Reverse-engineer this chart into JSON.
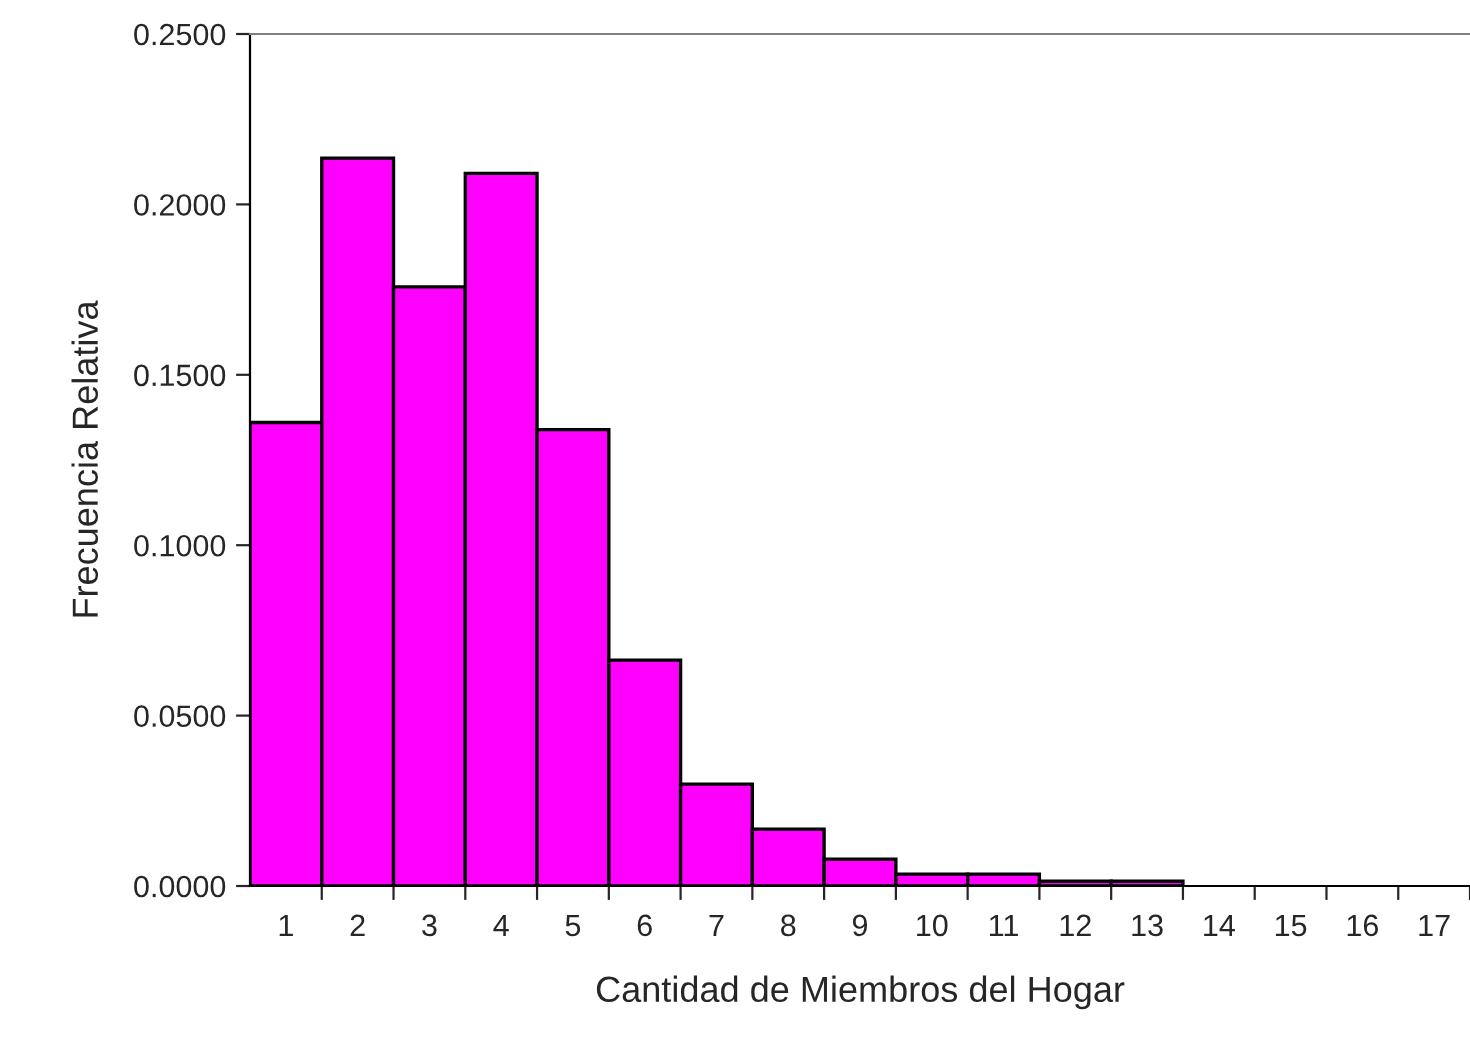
{
  "chart_data": {
    "type": "bar",
    "xlabel": "Cantidad de Miembros del Hogar",
    "ylabel": "Frecuencia Relativa",
    "categories": [
      "1",
      "2",
      "3",
      "4",
      "5",
      "6",
      "7",
      "8",
      "9",
      "10",
      "11",
      "12",
      "13",
      "14",
      "15",
      "16",
      "17"
    ],
    "values": [
      0.136,
      0.2136,
      0.1758,
      0.2091,
      0.1339,
      0.0663,
      0.0299,
      0.0167,
      0.0079,
      0.0035,
      0.0035,
      0.0014,
      0.0014,
      null,
      null,
      null,
      null
    ],
    "color": "#ff00ff",
    "ylim": [
      0,
      0.25
    ],
    "yticks": [
      {
        "value": 0,
        "label": "0.0000"
      },
      {
        "value": 0.05,
        "label": "0.0500"
      },
      {
        "value": 0.1,
        "label": "0.1000"
      },
      {
        "value": 0.15,
        "label": "0.1500"
      },
      {
        "value": 0.2,
        "label": "0.2000"
      },
      {
        "value": 0.25,
        "label": "0.2500"
      }
    ],
    "grid": false
  }
}
